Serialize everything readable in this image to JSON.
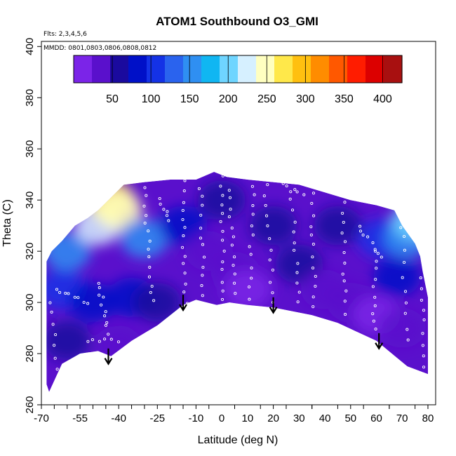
{
  "chart_data": {
    "type": "heatmap",
    "title": "ATOM1 Southbound O3_GMI",
    "flights_note": "Flts: 2,3,4,5,6",
    "dates_note": "MMDD: 0801,0803,0806,0808,0812",
    "xlabel": "Latitude (deg N)",
    "ylabel": "Theta (C)",
    "xlim": [
      -70,
      83
    ],
    "ylim": [
      260,
      402
    ],
    "x_ticks": [
      -70,
      -55,
      -40,
      -25,
      -10,
      5,
      20,
      35,
      50,
      65,
      80
    ],
    "x_tick_labels": [
      "-70",
      "-55",
      "-40",
      "-25",
      "-10",
      "0",
      "10",
      "20",
      "30",
      "40",
      "50",
      "60",
      "70",
      "80"
    ],
    "x_tick_label_positions": [
      -70,
      -55,
      -40,
      -25,
      -10,
      0,
      10,
      20,
      30,
      40,
      50,
      60,
      70,
      80
    ],
    "x_minor_ticks": [
      -65,
      -60,
      -50,
      -45,
      -35,
      -30,
      -20,
      -15,
      -5,
      5,
      15,
      25,
      35,
      45,
      55,
      65,
      75,
      80
    ],
    "y_ticks": [
      260,
      280,
      300,
      320,
      340,
      360,
      380,
      400
    ],
    "colorbar": {
      "range": [
        0,
        425
      ],
      "ticks": [
        50,
        100,
        150,
        200,
        250,
        300,
        350,
        400
      ],
      "colors": [
        "#7b24e8",
        "#5a10cc",
        "#1a0a9e",
        "#0010c8",
        "#1432e6",
        "#2a63ee",
        "#2f8ff2",
        "#10b6f2",
        "#6fd5ff",
        "#d6f0ff",
        "#ffffc0",
        "#ffe84a",
        "#ffc010",
        "#ff8c00",
        "#ff5800",
        "#ff1c00",
        "#dc0000",
        "#a81010"
      ]
    },
    "envelope": {
      "top": [
        [
          -68,
          316
        ],
        [
          -66,
          320
        ],
        [
          -62,
          324
        ],
        [
          -57,
          330
        ],
        [
          -52,
          333
        ],
        [
          -48,
          336
        ],
        [
          -43,
          341
        ],
        [
          -38,
          346
        ],
        [
          -30,
          347
        ],
        [
          -20,
          348
        ],
        [
          -10,
          348
        ],
        [
          -3,
          351
        ],
        [
          2,
          349
        ],
        [
          10,
          348
        ],
        [
          20,
          347
        ],
        [
          30,
          346
        ],
        [
          40,
          343
        ],
        [
          50,
          340
        ],
        [
          60,
          338
        ],
        [
          67,
          336
        ],
        [
          70,
          330
        ],
        [
          75,
          323
        ],
        [
          77,
          318
        ],
        [
          78,
          312
        ]
      ],
      "right": [
        [
          78,
          312
        ],
        [
          80,
          302
        ],
        [
          80,
          290
        ],
        [
          80,
          281
        ],
        [
          80,
          272
        ]
      ],
      "bottom": [
        [
          80,
          272
        ],
        [
          72,
          275
        ],
        [
          60,
          285
        ],
        [
          45,
          292
        ],
        [
          35,
          295
        ],
        [
          20,
          298
        ],
        [
          10,
          299
        ],
        [
          3,
          300
        ],
        [
          -2,
          299
        ],
        [
          -10,
          301
        ],
        [
          -15,
          299
        ],
        [
          -25,
          291
        ],
        [
          -35,
          285
        ],
        [
          -43,
          279
        ],
        [
          -48,
          281
        ],
        [
          -55,
          280
        ],
        [
          -62,
          276
        ],
        [
          -67,
          265
        ],
        [
          -68,
          268
        ],
        [
          -68,
          292
        ],
        [
          -68,
          316
        ]
      ]
    },
    "field_samples": [
      {
        "lat": -60,
        "theta": 320,
        "o3": 160
      },
      {
        "lat": -48,
        "theta": 330,
        "o3": 230
      },
      {
        "lat": -43,
        "theta": 340,
        "o3": 270
      },
      {
        "lat": -40,
        "theta": 336,
        "o3": 250
      },
      {
        "lat": -30,
        "theta": 325,
        "o3": 145
      },
      {
        "lat": -62,
        "theta": 305,
        "o3": 110
      },
      {
        "lat": -50,
        "theta": 300,
        "o3": 90
      },
      {
        "lat": -35,
        "theta": 302,
        "o3": 80
      },
      {
        "lat": -60,
        "theta": 285,
        "o3": 55
      },
      {
        "lat": -40,
        "theta": 283,
        "o3": 40
      },
      {
        "lat": -25,
        "theta": 300,
        "o3": 60
      },
      {
        "lat": -15,
        "theta": 330,
        "o3": 75
      },
      {
        "lat": -5,
        "theta": 320,
        "o3": 40
      },
      {
        "lat": 5,
        "theta": 312,
        "o3": 25
      },
      {
        "lat": 10,
        "theta": 305,
        "o3": 15
      },
      {
        "lat": 0,
        "theta": 340,
        "o3": 55
      },
      {
        "lat": 20,
        "theta": 330,
        "o3": 60
      },
      {
        "lat": 30,
        "theta": 315,
        "o3": 65
      },
      {
        "lat": 40,
        "theta": 305,
        "o3": 40
      },
      {
        "lat": 50,
        "theta": 300,
        "o3": 30
      },
      {
        "lat": 60,
        "theta": 295,
        "o3": 20
      },
      {
        "lat": 70,
        "theta": 290,
        "o3": 25
      },
      {
        "lat": 45,
        "theta": 330,
        "o3": 70
      },
      {
        "lat": 62,
        "theta": 325,
        "o3": 105
      },
      {
        "lat": 72,
        "theta": 325,
        "o3": 160
      },
      {
        "lat": 75,
        "theta": 332,
        "o3": 210
      },
      {
        "lat": 68,
        "theta": 310,
        "o3": 75
      }
    ],
    "arrows": [
      {
        "lat": -44,
        "theta_top": 282,
        "theta_bottom": 276
      },
      {
        "lat": -15,
        "theta_top": 303,
        "theta_bottom": 297
      },
      {
        "lat": 20,
        "theta_top": 302,
        "theta_bottom": 296
      },
      {
        "lat": 61,
        "theta_top": 288,
        "theta_bottom": 282
      }
    ],
    "observation_tracks": [
      {
        "x0": -64,
        "y0": 305,
        "x1": -52,
        "y1": 300,
        "n": 8
      },
      {
        "x0": -48,
        "y0": 308,
        "x1": -44,
        "y1": 288,
        "n": 10
      },
      {
        "x0": -52,
        "y0": 285,
        "x1": -40,
        "y1": 285,
        "n": 6
      },
      {
        "x0": -30,
        "y0": 345,
        "x1": -27,
        "y1": 300,
        "n": 14
      },
      {
        "x0": -15,
        "y0": 347,
        "x1": -14,
        "y1": 300,
        "n": 14
      },
      {
        "x0": -8,
        "y0": 345,
        "x1": -7,
        "y1": 303,
        "n": 12
      },
      {
        "x0": 0,
        "y0": 350,
        "x1": 1,
        "y1": 301,
        "n": 14
      },
      {
        "x0": 3,
        "y0": 344,
        "x1": 5,
        "y1": 303,
        "n": 12
      },
      {
        "x0": 12,
        "y0": 346,
        "x1": 11,
        "y1": 302,
        "n": 12
      },
      {
        "x0": 17,
        "y0": 346,
        "x1": 20,
        "y1": 300,
        "n": 12
      },
      {
        "x0": 27,
        "y0": 344,
        "x1": 30,
        "y1": 300,
        "n": 12
      },
      {
        "x0": 35,
        "y0": 342,
        "x1": 36,
        "y1": 298,
        "n": 12
      },
      {
        "x0": 47,
        "y0": 339,
        "x1": 48,
        "y1": 296,
        "n": 12
      },
      {
        "x0": 53,
        "y0": 330,
        "x1": 62,
        "y1": 318,
        "n": 8
      },
      {
        "x0": 60,
        "y0": 320,
        "x1": 59,
        "y1": 289,
        "n": 10
      },
      {
        "x0": 70,
        "y0": 330,
        "x1": 72,
        "y1": 285,
        "n": 10
      },
      {
        "x0": 78,
        "y0": 310,
        "x1": 79,
        "y1": 275,
        "n": 9
      },
      {
        "x0": -66,
        "y0": 300,
        "x1": -64,
        "y1": 270,
        "n": 8
      },
      {
        "x0": -24,
        "y0": 340,
        "x1": -20,
        "y1": 332,
        "n": 6
      },
      {
        "x0": 22,
        "y0": 348,
        "x1": 32,
        "y1": 342,
        "n": 6
      }
    ]
  }
}
